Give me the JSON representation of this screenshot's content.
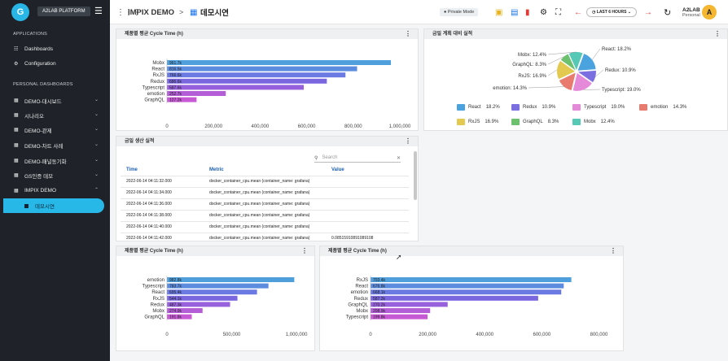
{
  "sidebar": {
    "logo": "G",
    "platform": "A2LAB PLATFORM",
    "applications_title": "APPLICATIONS",
    "app_items": [
      "Dashboards",
      "Configuration"
    ],
    "personal_title": "PERSONAL DASHBOARDS",
    "dash_items": [
      "DEMO-대시보드",
      "시나리오",
      "DEMO-관제",
      "DEMO-차트 사례",
      "DEMO-패널동기화",
      "GS인증 데모",
      "IMPIX DEMO"
    ],
    "active_sub": "데모시연"
  },
  "topbar": {
    "breadcrumb_root": "IMPIX DEMO",
    "breadcrumb_sep": ">",
    "breadcrumb_current": "데모시연",
    "private_mode": "Private Mode",
    "time_range": "LAST 6 HOURS",
    "user_name": "A2LAB",
    "user_role": "Personal",
    "avatar": "A"
  },
  "colors": {
    "React": "#4aa3df",
    "Redux": "#7a6ee0",
    "Typescript": "#e58ad8",
    "emotion": "#e87a6e",
    "RxJS": "#e3c94f",
    "GraphQL": "#6cc06e",
    "Mobx": "#56c8b6"
  },
  "panels": {
    "p1_title": "제품별 평균 Cycle Time (h)",
    "p2_title": "금일 계획 대비 실적",
    "p3_title": "금일 생산 실적",
    "p4_title": "제품별 평균 Cycle Time (h)",
    "p5_title": "제품별 평균 Cycle Time (h)"
  },
  "table": {
    "search_placeholder": "Search",
    "headers": [
      "Time",
      "Metric",
      "Value"
    ],
    "rows": [
      [
        "2022-06-14 04:11:32.000",
        "docker_container_cpu.mean (container_name: grafana)",
        ""
      ],
      [
        "2022-06-14 04:11:34.000",
        "docker_container_cpu.mean (container_name: grafana)",
        ""
      ],
      [
        "2022-06-14 04:11:36.000",
        "docker_container_cpu.mean (container_name: grafana)",
        ""
      ],
      [
        "2022-06-14 04:11:38.000",
        "docker_container_cpu.mean (container_name: grafana)",
        ""
      ],
      [
        "2022-06-14 04:11:40.000",
        "docker_container_cpu.mean (container_name: grafana)",
        ""
      ],
      [
        "2022-06-14 04:11:42.000",
        "docker_container_cpu.mean (container_name: grafana)",
        "0.08515910891089108"
      ]
    ]
  },
  "chart_data": [
    {
      "type": "bar",
      "orientation": "horizontal",
      "title": "제품별 평균 Cycle Time (h)",
      "categories": [
        "Mobx",
        "React",
        "RxJS",
        "Redux",
        "Typescript",
        "emotion",
        "GraphQL"
      ],
      "values": [
        961700,
        816500,
        766600,
        686600,
        587600,
        252700,
        127200
      ],
      "labels": [
        "961.7k",
        "816.5k",
        "766.6k",
        "686.6k",
        "587.6k",
        "252.7k",
        "127.2k"
      ],
      "colors": [
        "#4f9fdc",
        "#5c8ce0",
        "#6a7ae2",
        "#7a67e0",
        "#9760dc",
        "#b35ed6",
        "#c75ad4"
      ],
      "xlim": [
        0,
        1000000
      ],
      "ticks": [
        "0",
        "200,000",
        "400,000",
        "600,000",
        "800,000",
        "1,000,000"
      ]
    },
    {
      "type": "pie",
      "title": "금일 계획 대비 실적",
      "categories": [
        "React",
        "Redux",
        "Typescript",
        "emotion",
        "RxJS",
        "GraphQL",
        "Mobx"
      ],
      "values": [
        18.2,
        10.9,
        19.0,
        14.3,
        16.9,
        8.3,
        12.4
      ],
      "labels": [
        "React: 18.2%",
        "Redux: 10.9%",
        "Typescript: 19.0%",
        "emotion: 14.3%",
        "RxJS: 16.9%",
        "GraphQL: 8.3%",
        "Mobx: 12.4%"
      ],
      "legend_pct": [
        "18.2%",
        "10.9%",
        "19.0%",
        "14.3%",
        "16.9%",
        "8.3%",
        "12.4%"
      ],
      "legend": "bottom"
    },
    {
      "type": "bar",
      "orientation": "horizontal",
      "title": "제품별 평균 Cycle Time (h)",
      "categories": [
        "emotion",
        "Typescript",
        "React",
        "RxJS",
        "Redux",
        "Mobx",
        "GraphQL"
      ],
      "values": [
        982800,
        783700,
        695400,
        544100,
        487300,
        274900,
        191800
      ],
      "labels": [
        "982.8k",
        "783.7k",
        "695.4k",
        "544.1k",
        "487.3k",
        "274.9k",
        "191.8k"
      ],
      "colors": [
        "#4f9fdc",
        "#5c8ce0",
        "#6a7ae2",
        "#7a67e0",
        "#9760dc",
        "#b35ed6",
        "#c75ad4"
      ],
      "xlim": [
        0,
        1100000
      ],
      "ticks": [
        "0",
        "500,000",
        "1,000,000"
      ],
      "tick_values": [
        0,
        500000,
        1000000
      ]
    },
    {
      "type": "bar",
      "orientation": "horizontal",
      "title": "제품별 평균 Cycle Time (h)",
      "categories": [
        "RxJS",
        "React",
        "emotion",
        "Redux",
        "GraphQL",
        "Mobx",
        "Typescript"
      ],
      "values": [
        703400,
        676800,
        668100,
        587200,
        270200,
        208900,
        199800
      ],
      "labels": [
        "703.4k",
        "676.8k",
        "668.1k",
        "587.2k",
        "270.2k",
        "208.9k",
        "199.8k"
      ],
      "colors": [
        "#4f9fdc",
        "#5c8ce0",
        "#6a7ae2",
        "#7a67e0",
        "#9760dc",
        "#b35ed6",
        "#c75ad4"
      ],
      "xlim": [
        0,
        830000
      ],
      "ticks": [
        "0",
        "200,000",
        "400,000",
        "600,000",
        "800,000"
      ],
      "tick_values": [
        0,
        200000,
        400000,
        600000,
        800000
      ]
    }
  ]
}
